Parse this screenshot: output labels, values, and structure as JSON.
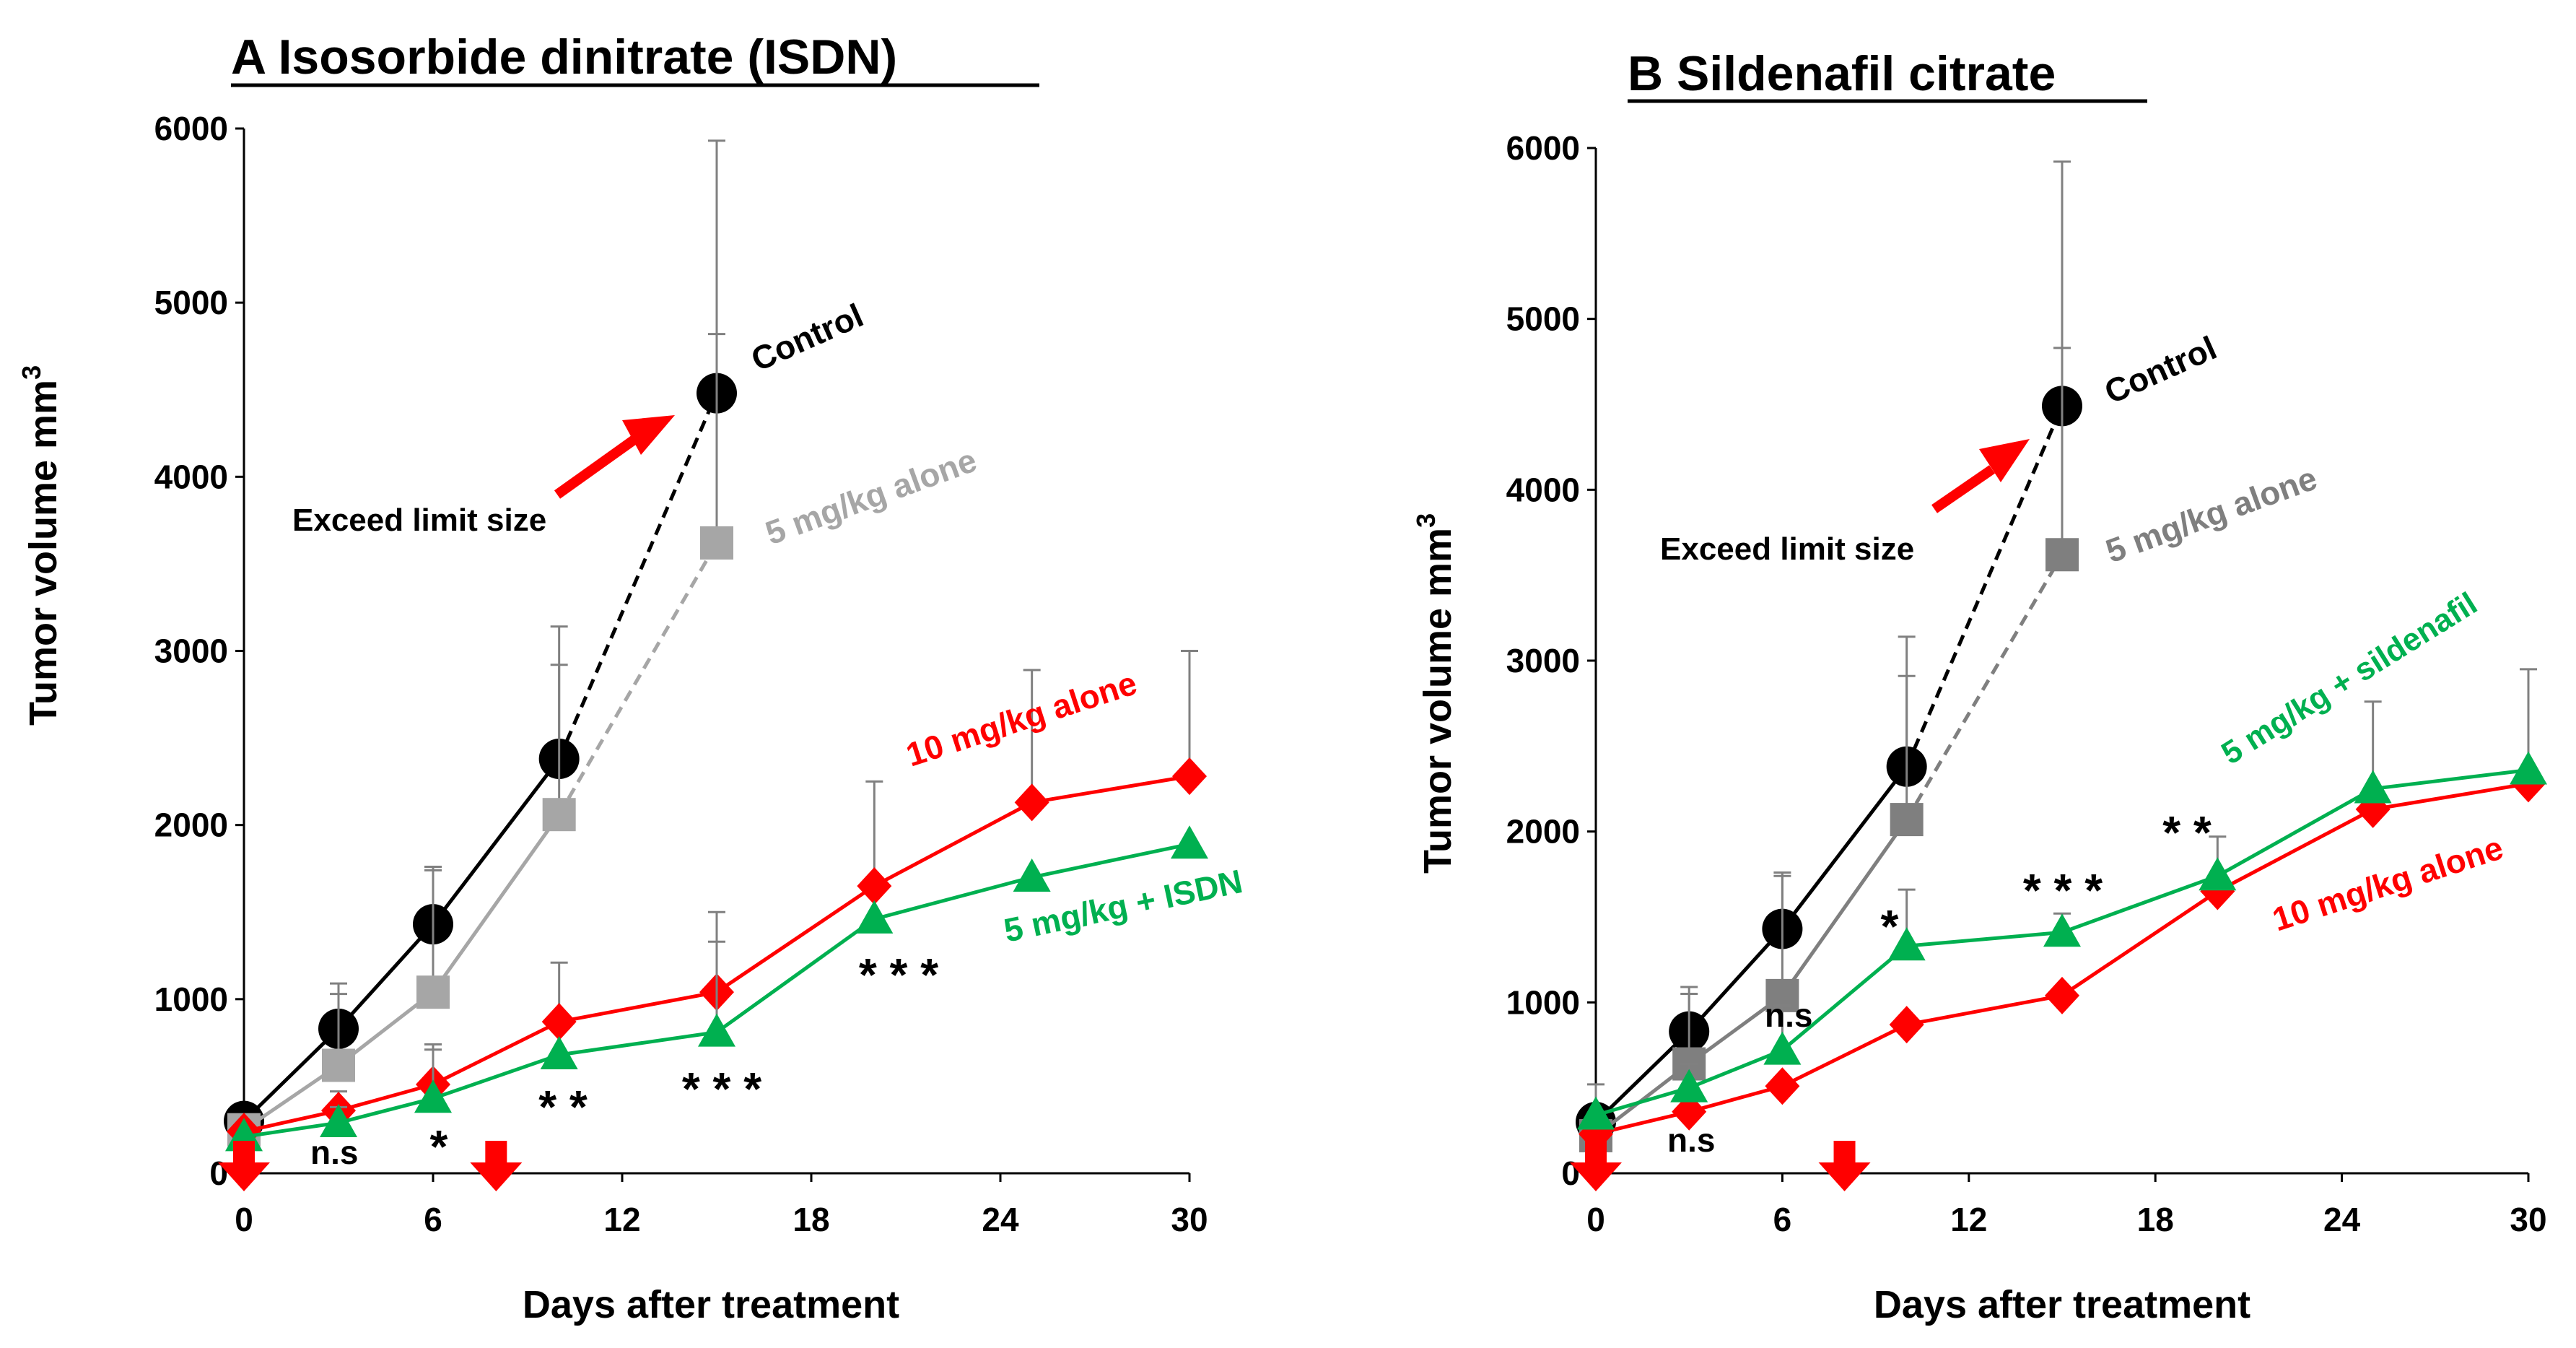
{
  "chart_data": [
    {
      "type": "line",
      "title": "A  Isosorbide dinitrate (ISDN)",
      "xlabel": "Days after treatment",
      "ylabel": "Tumor volume mm",
      "ylabel_sup": "3",
      "xlim": [
        0,
        30
      ],
      "ylim": [
        0,
        6000
      ],
      "xticks": [
        "0",
        "6",
        "12",
        "18",
        "24",
        "30"
      ],
      "yticks": [
        "0",
        "1000",
        "2000",
        "3000",
        "4000",
        "5000",
        "6000"
      ],
      "grid": false,
      "series": [
        {
          "name": "Control",
          "color": "#000000",
          "marker": "circle",
          "x": [
            0,
            3,
            6,
            10,
            15
          ],
          "y": [
            300,
            830,
            1430,
            2380,
            4480
          ],
          "err": [
            0,
            260,
            330,
            760,
            1450
          ],
          "dashed_from": 3
        },
        {
          "name": "5 mg/kg alone",
          "color": "#a6a6a6",
          "marker": "square",
          "x": [
            0,
            3,
            6,
            10,
            15
          ],
          "y": [
            250,
            620,
            1040,
            2060,
            3620
          ],
          "err": [
            0,
            410,
            700,
            860,
            1200
          ],
          "dashed_from": 3
        },
        {
          "name": "10 mg/kg alone",
          "color": "#ff0000",
          "marker": "diamond",
          "x": [
            0,
            3,
            6,
            10,
            15,
            20,
            25,
            30
          ],
          "y": [
            240,
            360,
            510,
            870,
            1040,
            1650,
            2130,
            2280
          ],
          "err": [
            0,
            110,
            200,
            340,
            460,
            600,
            760,
            720
          ],
          "dashed_from": -1
        },
        {
          "name": "5 mg/kg + ISDN",
          "color": "#00b050",
          "marker": "triangle",
          "x": [
            0,
            3,
            6,
            10,
            15,
            20,
            25,
            30
          ],
          "y": [
            210,
            290,
            430,
            680,
            810,
            1460,
            1700,
            1890
          ],
          "err": [
            0,
            90,
            310,
            0,
            520,
            0,
            0,
            0
          ],
          "dashed_from": -1
        }
      ],
      "annotations": [
        {
          "text": "Exceed limit size"
        },
        {
          "text": "n.s"
        },
        {
          "text": "*"
        },
        {
          "text": "* *"
        },
        {
          "text": "* * *"
        },
        {
          "text": "* * *"
        }
      ],
      "treatment_days": [
        0,
        8
      ]
    },
    {
      "type": "line",
      "title": "B  Sildenafil citrate",
      "xlabel": "Days after treatment",
      "ylabel": "Tumor volume mm",
      "ylabel_sup": "3",
      "xlim": [
        0,
        30
      ],
      "ylim": [
        0,
        6000
      ],
      "xticks": [
        "0",
        "6",
        "12",
        "18",
        "24",
        "30"
      ],
      "yticks": [
        "0",
        "1000",
        "2000",
        "3000",
        "4000",
        "5000",
        "6000"
      ],
      "grid": false,
      "series": [
        {
          "name": "Control",
          "color": "#000000",
          "marker": "circle",
          "x": [
            0,
            3,
            6,
            10,
            15
          ],
          "y": [
            300,
            830,
            1430,
            2380,
            4490
          ],
          "err": [
            0,
            260,
            330,
            760,
            1430
          ],
          "dashed_from": 3
        },
        {
          "name": "5 mg/kg alone",
          "color": "#7f7f7f",
          "marker": "square",
          "x": [
            0,
            3,
            6,
            10,
            15
          ],
          "y": [
            220,
            640,
            1040,
            2070,
            3620
          ],
          "err": [
            0,
            410,
            700,
            840,
            1210
          ],
          "dashed_from": 3
        },
        {
          "name": "10 mg/kg alone",
          "color": "#ff0000",
          "marker": "diamond",
          "x": [
            0,
            3,
            6,
            10,
            15,
            20,
            25,
            30
          ],
          "y": [
            230,
            360,
            510,
            870,
            1040,
            1650,
            2130,
            2280
          ],
          "err": [
            0,
            0,
            0,
            0,
            0,
            0,
            0,
            0
          ],
          "dashed_from": -1
        },
        {
          "name": "5 mg/kg + sildenafil",
          "color": "#00b050",
          "marker": "triangle",
          "x": [
            0,
            3,
            6,
            10,
            15,
            20,
            25,
            30
          ],
          "y": [
            340,
            500,
            720,
            1330,
            1410,
            1740,
            2250,
            2360
          ],
          "err": [
            180,
            140,
            260,
            330,
            110,
            230,
            510,
            590
          ],
          "dashed_from": -1
        }
      ],
      "annotations": [
        {
          "text": "Exceed limit size"
        },
        {
          "text": "n.s"
        },
        {
          "text": "n.s"
        },
        {
          "text": "*"
        },
        {
          "text": "* * *"
        },
        {
          "text": "* *"
        }
      ],
      "treatment_days": [
        0,
        8
      ]
    }
  ]
}
